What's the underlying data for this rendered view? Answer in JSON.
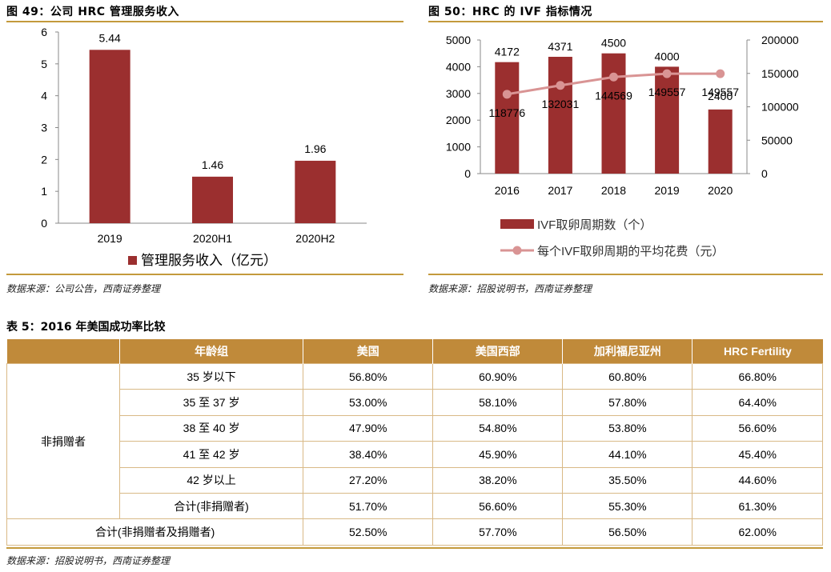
{
  "figure49": {
    "title": "图 49：公司 HRC 管理服务收入",
    "source": "数据来源：公司公告，西南证券整理"
  },
  "figure50": {
    "title": "图 50：HRC 的 IVF 指标情况",
    "source": "数据来源：招股说明书，西南证券整理"
  },
  "chart_data": [
    {
      "type": "bar",
      "categories": [
        "2019",
        "2020H1",
        "2020H2"
      ],
      "series": [
        {
          "name": "管理服务收入（亿元）",
          "values": [
            5.44,
            1.46,
            1.96
          ],
          "color": "#9b2f2f"
        }
      ],
      "ylim": [
        0,
        6
      ],
      "yticks": [
        "0",
        "1",
        "2",
        "3",
        "4",
        "5",
        "6"
      ],
      "data_labels": [
        "5.44",
        "1.46",
        "1.96"
      ],
      "legend": "bottom",
      "grid": false
    },
    {
      "type": "bar+line",
      "categories": [
        "2016",
        "2017",
        "2018",
        "2019",
        "2020"
      ],
      "series": [
        {
          "name": "IVF取卵周期数（个）",
          "type": "bar",
          "axis": "left",
          "values": [
            4172,
            4371,
            4500,
            4000,
            2400
          ],
          "data_labels": [
            "4172",
            "4371",
            "4500",
            "4000",
            "2400"
          ],
          "color": "#9b2f2f"
        },
        {
          "name": "每个IVF取卵周期的平均花费（元）",
          "type": "line",
          "axis": "right",
          "values": [
            118776,
            132031,
            144569,
            149557,
            149557
          ],
          "data_labels": [
            "118776",
            "132031",
            "144569",
            "149557",
            "149557"
          ],
          "color": "#d99494"
        }
      ],
      "left_ylim": [
        0,
        5000
      ],
      "left_yticks": [
        "0",
        "1000",
        "2000",
        "3000",
        "4000",
        "5000"
      ],
      "right_ylim": [
        0,
        200000
      ],
      "right_yticks": [
        "0",
        "50000",
        "100000",
        "150000",
        "200000"
      ],
      "legend": "bottom",
      "grid": false
    }
  ],
  "table5": {
    "title": "表 5：2016 年美国成功率比较",
    "headers": [
      "",
      "年龄组",
      "美国",
      "美国西部",
      "加利福尼亚州",
      "HRC Fertility"
    ],
    "group_label": "非捐赠者",
    "rows": [
      {
        "age": "35 岁以下",
        "us": "56.80%",
        "west": "60.90%",
        "ca": "60.80%",
        "hrc": "66.80%"
      },
      {
        "age": "35 至 37 岁",
        "us": "53.00%",
        "west": "58.10%",
        "ca": "57.80%",
        "hrc": "64.40%"
      },
      {
        "age": "38 至 40 岁",
        "us": "47.90%",
        "west": "54.80%",
        "ca": "53.80%",
        "hrc": "56.60%"
      },
      {
        "age": "41 至 42 岁",
        "us": "38.40%",
        "west": "45.90%",
        "ca": "44.10%",
        "hrc": "45.40%"
      },
      {
        "age": "42 岁以上",
        "us": "27.20%",
        "west": "38.20%",
        "ca": "35.50%",
        "hrc": "44.60%"
      },
      {
        "age": "合计(非捐赠者)",
        "us": "51.70%",
        "west": "56.60%",
        "ca": "55.30%",
        "hrc": "61.30%"
      }
    ],
    "total": {
      "label": "合计(非捐赠者及捐赠者)",
      "us": "52.50%",
      "west": "57.70%",
      "ca": "56.50%",
      "hrc": "62.00%"
    },
    "source": "数据来源：招股说明书，西南证券整理"
  }
}
